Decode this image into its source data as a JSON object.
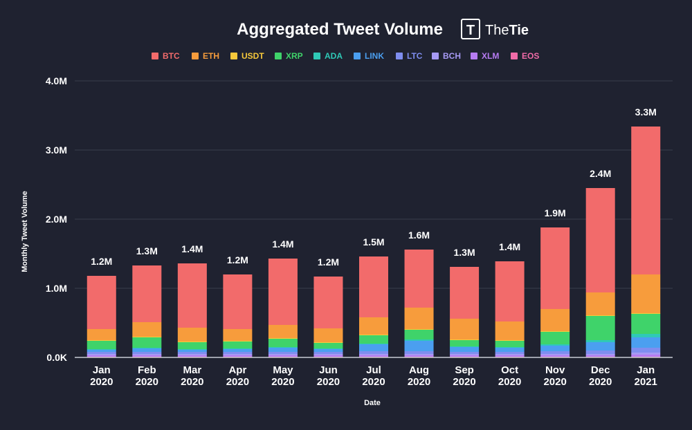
{
  "chart_data": {
    "type": "bar",
    "stacked": true,
    "title": "Aggregated Tweet Volume",
    "brand": {
      "name_light": "The",
      "name_bold": "Tie",
      "logo_letter": "T"
    },
    "xlabel": "Date",
    "ylabel": "Monthly Tweet Volume",
    "ylim": [
      0,
      4000000
    ],
    "yticks": [
      {
        "value": 0,
        "label": "0.0K"
      },
      {
        "value": 1000000,
        "label": "1.0M"
      },
      {
        "value": 2000000,
        "label": "2.0M"
      },
      {
        "value": 3000000,
        "label": "3.0M"
      },
      {
        "value": 4000000,
        "label": "4.0M"
      }
    ],
    "grid": true,
    "legend_position": "top",
    "categories": [
      [
        "Jan",
        "2020"
      ],
      [
        "Feb",
        "2020"
      ],
      [
        "Mar",
        "2020"
      ],
      [
        "Apr",
        "2020"
      ],
      [
        "May",
        "2020"
      ],
      [
        "Jun",
        "2020"
      ],
      [
        "Jul",
        "2020"
      ],
      [
        "Aug",
        "2020"
      ],
      [
        "Sep",
        "2020"
      ],
      [
        "Oct",
        "2020"
      ],
      [
        "Nov",
        "2020"
      ],
      [
        "Dec",
        "2020"
      ],
      [
        "Jan",
        "2021"
      ]
    ],
    "totals_labels": [
      "1.2M",
      "1.3M",
      "1.4M",
      "1.2M",
      "1.4M",
      "1.2M",
      "1.5M",
      "1.6M",
      "1.3M",
      "1.4M",
      "1.9M",
      "2.4M",
      "3.3M"
    ],
    "series": [
      {
        "name": "EOS",
        "color": "#f06ba8",
        "values": [
          10000,
          10000,
          10000,
          10000,
          10000,
          10000,
          10000,
          10000,
          10000,
          10000,
          10000,
          10000,
          10000
        ]
      },
      {
        "name": "XLM",
        "color": "#b77cf2",
        "values": [
          20000,
          20000,
          20000,
          20000,
          20000,
          20000,
          20000,
          20000,
          20000,
          20000,
          20000,
          20000,
          30000
        ]
      },
      {
        "name": "BCH",
        "color": "#a79af5",
        "values": [
          20000,
          20000,
          20000,
          20000,
          20000,
          20000,
          20000,
          20000,
          20000,
          20000,
          20000,
          20000,
          30000
        ]
      },
      {
        "name": "LTC",
        "color": "#7f8ef0",
        "values": [
          30000,
          30000,
          30000,
          30000,
          30000,
          30000,
          40000,
          40000,
          30000,
          30000,
          40000,
          50000,
          70000
        ]
      },
      {
        "name": "LINK",
        "color": "#4b9ff0",
        "values": [
          30000,
          50000,
          30000,
          40000,
          60000,
          40000,
          100000,
          150000,
          70000,
          60000,
          80000,
          120000,
          150000
        ]
      },
      {
        "name": "ADA",
        "color": "#2fc9b7",
        "values": [
          10000,
          10000,
          10000,
          10000,
          10000,
          10000,
          10000,
          20000,
          10000,
          10000,
          20000,
          30000,
          50000
        ]
      },
      {
        "name": "XRP",
        "color": "#3fd36a",
        "values": [
          120000,
          150000,
          100000,
          100000,
          120000,
          80000,
          120000,
          140000,
          90000,
          90000,
          180000,
          350000,
          290000
        ]
      },
      {
        "name": "USDT",
        "color": "#f7c93b",
        "values": [
          10000,
          10000,
          10000,
          10000,
          10000,
          10000,
          10000,
          10000,
          10000,
          10000,
          10000,
          10000,
          10000
        ]
      },
      {
        "name": "ETH",
        "color": "#f79c3c",
        "values": [
          160000,
          210000,
          200000,
          170000,
          190000,
          200000,
          250000,
          310000,
          300000,
          270000,
          320000,
          330000,
          560000
        ]
      },
      {
        "name": "BTC",
        "color": "#f26b6b",
        "values": [
          770000,
          820000,
          930000,
          790000,
          960000,
          750000,
          880000,
          840000,
          750000,
          870000,
          1180000,
          1510000,
          2140000
        ]
      }
    ],
    "legend_order": [
      "BTC",
      "ETH",
      "USDT",
      "XRP",
      "ADA",
      "LINK",
      "LTC",
      "BCH",
      "XLM",
      "EOS"
    ]
  }
}
